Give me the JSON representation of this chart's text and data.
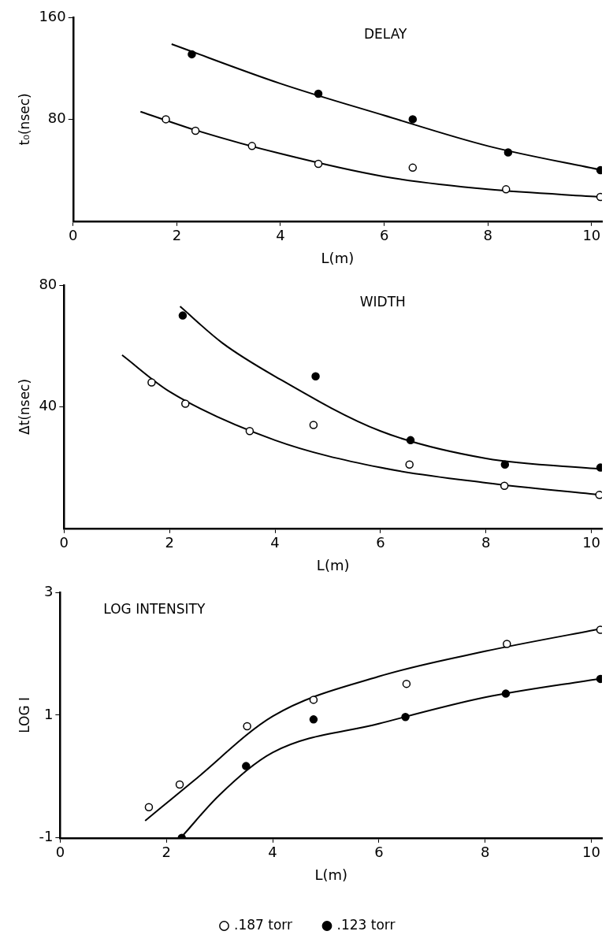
{
  "chart_data": [
    {
      "type": "scatter",
      "title": "DELAY",
      "xlabel": "L(m)",
      "ylabel": "t₀(nsec)",
      "xlim": [
        0,
        10.2
      ],
      "xticks": [
        0,
        2,
        4,
        6,
        8,
        10
      ],
      "ylim": [
        0,
        160
      ],
      "yticks": [
        80,
        160
      ],
      "marker": "circle",
      "grid": false,
      "legend": false,
      "series": [
        {
          "color": "#ffffff",
          "x": [
            1.79,
            2.36,
            3.45,
            4.73,
            6.55,
            8.35,
            10.17
          ],
          "values": [
            80,
            71,
            59,
            45,
            42,
            25,
            19
          ]
        },
        {
          "color": "#000000",
          "x": [
            2.29,
            4.73,
            6.55,
            8.39,
            10.17
          ],
          "values": [
            131,
            100,
            80,
            54,
            40
          ]
        },
        {
          "type": "line",
          "marker": "none",
          "color": "#000000",
          "x": [
            1.3,
            2.4,
            4,
            6,
            8,
            10.2
          ],
          "values": [
            86,
            71,
            53,
            35,
            25,
            19
          ]
        },
        {
          "type": "line",
          "marker": "none",
          "color": "#000000",
          "x": [
            1.9,
            4,
            6,
            8,
            10.2
          ],
          "values": [
            139,
            108,
            83,
            59,
            40
          ]
        }
      ]
    },
    {
      "type": "scatter",
      "title": "WIDTH",
      "xlabel": "L(m)",
      "ylabel": "Δt(nsec)",
      "xlim": [
        0,
        10.2
      ],
      "xticks": [
        0,
        2,
        4,
        6,
        8,
        10
      ],
      "ylim": [
        0,
        80
      ],
      "yticks": [
        40,
        80
      ],
      "marker": "circle",
      "grid": false,
      "legend": false,
      "series": [
        {
          "color": "#ffffff",
          "x": [
            1.66,
            2.3,
            3.52,
            4.73,
            6.55,
            8.35,
            10.15
          ],
          "values": [
            48,
            41,
            32,
            34,
            21,
            14,
            11
          ]
        },
        {
          "color": "#000000",
          "x": [
            2.25,
            4.77,
            6.57,
            8.36,
            10.17
          ],
          "values": [
            70,
            50,
            29,
            21,
            20
          ]
        },
        {
          "type": "line",
          "marker": "none",
          "color": "#000000",
          "x": [
            1.1,
            2,
            4,
            6,
            8,
            10.2
          ],
          "values": [
            57,
            45,
            29,
            20,
            15,
            11
          ]
        },
        {
          "type": "line",
          "marker": "none",
          "color": "#000000",
          "x": [
            2.2,
            3,
            4,
            6,
            8,
            10.2
          ],
          "values": [
            73,
            61,
            50,
            32,
            23,
            19.5
          ]
        }
      ]
    },
    {
      "type": "scatter",
      "title": "LOG INTENSITY",
      "xlabel": "L(m)",
      "ylabel": "LOG I",
      "xlim": [
        0,
        10.2
      ],
      "xticks": [
        0,
        2,
        4,
        6,
        8,
        10
      ],
      "ylim": [
        -1,
        3
      ],
      "yticks": [
        -1,
        1,
        3
      ],
      "marker": "circle",
      "grid": false,
      "legend": "bottom",
      "series": [
        {
          "name": ".187 torr",
          "color": "#ffffff",
          "x": [
            1.67,
            2.25,
            3.52,
            4.77,
            6.52,
            8.41,
            10.17
          ],
          "values": [
            -0.5,
            -0.13,
            0.82,
            1.25,
            1.51,
            2.16,
            2.39
          ]
        },
        {
          "name": ".123 torr",
          "color": "#000000",
          "x": [
            2.29,
            3.5,
            4.77,
            6.5,
            8.39,
            10.17
          ],
          "values": [
            -1,
            0.17,
            0.93,
            0.97,
            1.35,
            1.59
          ]
        },
        {
          "type": "line",
          "marker": "none",
          "color": "#000000",
          "x": [
            1.6,
            2.5,
            4,
            6,
            8,
            10.2
          ],
          "values": [
            -0.72,
            -0.08,
            0.98,
            1.63,
            2.04,
            2.41
          ]
        },
        {
          "type": "line",
          "marker": "none",
          "color": "#000000",
          "x": [
            2.3,
            3,
            4,
            6,
            8,
            10.2
          ],
          "values": [
            -0.97,
            -0.3,
            0.39,
            0.86,
            1.29,
            1.6
          ]
        }
      ]
    }
  ]
}
